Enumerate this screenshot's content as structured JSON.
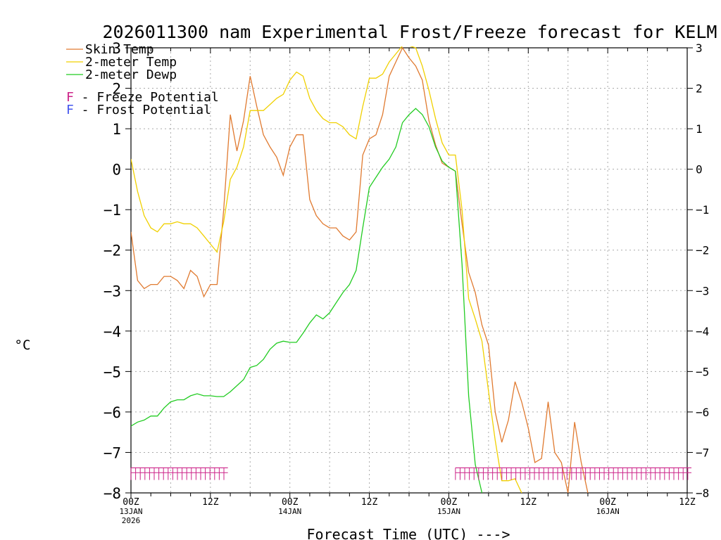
{
  "chart_data": {
    "type": "line",
    "title": "2026011300 nam Experimental Frost/Freeze forecast for KELM",
    "ylabel": "°C",
    "xlabel": "Forecast Time (UTC) --->",
    "ylim": [
      -8,
      3
    ],
    "xlim": [
      0,
      84
    ],
    "grid": true,
    "y_ticks": [
      -8,
      -7,
      -6,
      -5,
      -4,
      -3,
      -2,
      -1,
      0,
      1,
      2,
      3
    ],
    "x_ticks": [
      {
        "hour": 0,
        "label": "00Z",
        "sub1": "13JAN",
        "sub2": "2026"
      },
      {
        "hour": 12,
        "label": "12Z",
        "sub1": "",
        "sub2": ""
      },
      {
        "hour": 24,
        "label": "00Z",
        "sub1": "14JAN",
        "sub2": ""
      },
      {
        "hour": 36,
        "label": "12Z",
        "sub1": "",
        "sub2": ""
      },
      {
        "hour": 48,
        "label": "00Z",
        "sub1": "15JAN",
        "sub2": ""
      },
      {
        "hour": 60,
        "label": "12Z",
        "sub1": "",
        "sub2": ""
      },
      {
        "hour": 72,
        "label": "00Z",
        "sub1": "16JAN",
        "sub2": ""
      },
      {
        "hour": 84,
        "label": "12Z",
        "sub1": "",
        "sub2": ""
      }
    ],
    "legend": [
      {
        "name": "Skin Temp",
        "color": "#e07a30"
      },
      {
        "name": "2-meter Temp",
        "color": "#f0d000"
      },
      {
        "name": "2-meter Dewp",
        "color": "#22cc22"
      }
    ],
    "potential_legend": [
      {
        "symbol": "F",
        "text": " - Freeze Potential",
        "color": "#cc2288"
      },
      {
        "symbol": "F",
        "text": " - Frost Potential",
        "color": "#4455ee"
      }
    ],
    "series": [
      {
        "name": "Skin Temp",
        "color": "#e07a30",
        "points": [
          [
            0,
            -1.55
          ],
          [
            1,
            -2.75
          ],
          [
            2,
            -2.95
          ],
          [
            3,
            -2.85
          ],
          [
            4,
            -2.85
          ],
          [
            5,
            -2.65
          ],
          [
            6,
            -2.65
          ],
          [
            7,
            -2.75
          ],
          [
            8,
            -2.95
          ],
          [
            9,
            -2.5
          ],
          [
            10,
            -2.65
          ],
          [
            11,
            -3.15
          ],
          [
            12,
            -2.85
          ],
          [
            13,
            -2.85
          ],
          [
            14,
            -1.0
          ],
          [
            15,
            1.35
          ],
          [
            16,
            0.45
          ],
          [
            17,
            1.2
          ],
          [
            18,
            2.3
          ],
          [
            19,
            1.55
          ],
          [
            20,
            0.85
          ],
          [
            21,
            0.55
          ],
          [
            22,
            0.3
          ],
          [
            23,
            -0.15
          ],
          [
            24,
            0.55
          ],
          [
            25,
            0.85
          ],
          [
            26,
            0.85
          ],
          [
            27,
            -0.75
          ],
          [
            28,
            -1.15
          ],
          [
            29,
            -1.35
          ],
          [
            30,
            -1.45
          ],
          [
            31,
            -1.45
          ],
          [
            32,
            -1.65
          ],
          [
            33,
            -1.75
          ],
          [
            34,
            -1.55
          ],
          [
            35,
            0.35
          ],
          [
            36,
            0.75
          ],
          [
            37,
            0.85
          ],
          [
            38,
            1.35
          ],
          [
            39,
            2.3
          ],
          [
            40,
            2.65
          ],
          [
            41,
            3.0
          ],
          [
            42,
            2.75
          ],
          [
            43,
            2.55
          ],
          [
            44,
            2.2
          ],
          [
            45,
            1.2
          ],
          [
            46,
            0.6
          ],
          [
            47,
            0.15
          ],
          [
            48,
            0.05
          ],
          [
            49,
            -0.05
          ],
          [
            50,
            -1.35
          ],
          [
            51,
            -2.55
          ],
          [
            52,
            -3.05
          ],
          [
            53,
            -3.85
          ],
          [
            54,
            -4.35
          ],
          [
            55,
            -6.0
          ],
          [
            56,
            -6.75
          ],
          [
            57,
            -6.2
          ],
          [
            58,
            -5.25
          ],
          [
            59,
            -5.75
          ],
          [
            60,
            -6.4
          ],
          [
            61,
            -7.25
          ],
          [
            62,
            -7.15
          ],
          [
            63,
            -5.75
          ],
          [
            64,
            -7.0
          ],
          [
            65,
            -7.25
          ],
          [
            66,
            -8.0
          ],
          [
            67,
            -6.25
          ],
          [
            68,
            -7.25
          ],
          [
            69,
            -8.0
          ]
        ]
      },
      {
        "name": "2-meter Temp",
        "color": "#f0d000",
        "points": [
          [
            0,
            0.25
          ],
          [
            1,
            -0.55
          ],
          [
            2,
            -1.15
          ],
          [
            3,
            -1.45
          ],
          [
            4,
            -1.55
          ],
          [
            5,
            -1.35
          ],
          [
            6,
            -1.35
          ],
          [
            7,
            -1.3
          ],
          [
            8,
            -1.35
          ],
          [
            9,
            -1.35
          ],
          [
            10,
            -1.45
          ],
          [
            11,
            -1.65
          ],
          [
            12,
            -1.85
          ],
          [
            13,
            -2.05
          ],
          [
            14,
            -1.3
          ],
          [
            15,
            -0.25
          ],
          [
            16,
            0.05
          ],
          [
            17,
            0.55
          ],
          [
            18,
            1.45
          ],
          [
            19,
            1.45
          ],
          [
            20,
            1.45
          ],
          [
            21,
            1.6
          ],
          [
            22,
            1.75
          ],
          [
            23,
            1.85
          ],
          [
            24,
            2.2
          ],
          [
            25,
            2.4
          ],
          [
            26,
            2.3
          ],
          [
            27,
            1.75
          ],
          [
            28,
            1.45
          ],
          [
            29,
            1.25
          ],
          [
            30,
            1.15
          ],
          [
            31,
            1.15
          ],
          [
            32,
            1.05
          ],
          [
            33,
            0.85
          ],
          [
            34,
            0.75
          ],
          [
            35,
            1.55
          ],
          [
            36,
            2.25
          ],
          [
            37,
            2.25
          ],
          [
            38,
            2.35
          ],
          [
            39,
            2.65
          ],
          [
            40,
            2.85
          ],
          [
            41,
            3.05
          ],
          [
            42,
            3.05
          ],
          [
            43,
            3.0
          ],
          [
            44,
            2.55
          ],
          [
            45,
            1.95
          ],
          [
            46,
            1.25
          ],
          [
            47,
            0.65
          ],
          [
            48,
            0.35
          ],
          [
            49,
            0.35
          ],
          [
            50,
            -1.0
          ],
          [
            51,
            -3.2
          ],
          [
            52,
            -3.7
          ],
          [
            53,
            -4.25
          ],
          [
            54,
            -5.5
          ],
          [
            55,
            -6.7
          ],
          [
            56,
            -7.7
          ],
          [
            57,
            -7.7
          ],
          [
            58,
            -7.65
          ],
          [
            59,
            -8.0
          ]
        ]
      },
      {
        "name": "2-meter Dewp",
        "color": "#22cc22",
        "points": [
          [
            0,
            -6.35
          ],
          [
            1,
            -6.25
          ],
          [
            2,
            -6.2
          ],
          [
            3,
            -6.1
          ],
          [
            4,
            -6.1
          ],
          [
            5,
            -5.9
          ],
          [
            6,
            -5.75
          ],
          [
            7,
            -5.7
          ],
          [
            8,
            -5.7
          ],
          [
            9,
            -5.6
          ],
          [
            10,
            -5.55
          ],
          [
            11,
            -5.6
          ],
          [
            12,
            -5.6
          ],
          [
            13,
            -5.62
          ],
          [
            14,
            -5.62
          ],
          [
            15,
            -5.5
          ],
          [
            16,
            -5.35
          ],
          [
            17,
            -5.2
          ],
          [
            18,
            -4.9
          ],
          [
            19,
            -4.85
          ],
          [
            20,
            -4.7
          ],
          [
            21,
            -4.45
          ],
          [
            22,
            -4.3
          ],
          [
            23,
            -4.25
          ],
          [
            24,
            -4.28
          ],
          [
            25,
            -4.28
          ],
          [
            26,
            -4.05
          ],
          [
            27,
            -3.8
          ],
          [
            28,
            -3.6
          ],
          [
            29,
            -3.7
          ],
          [
            30,
            -3.55
          ],
          [
            31,
            -3.3
          ],
          [
            32,
            -3.05
          ],
          [
            33,
            -2.85
          ],
          [
            34,
            -2.5
          ],
          [
            35,
            -1.45
          ],
          [
            36,
            -0.45
          ],
          [
            37,
            -0.2
          ],
          [
            38,
            0.05
          ],
          [
            39,
            0.25
          ],
          [
            40,
            0.55
          ],
          [
            41,
            1.15
          ],
          [
            42,
            1.35
          ],
          [
            43,
            1.5
          ],
          [
            44,
            1.35
          ],
          [
            45,
            1.05
          ],
          [
            46,
            0.55
          ],
          [
            47,
            0.2
          ],
          [
            48,
            0.05
          ],
          [
            49,
            -0.05
          ],
          [
            50,
            -2.35
          ],
          [
            51,
            -5.6
          ],
          [
            52,
            -7.3
          ],
          [
            53,
            -8.0
          ]
        ]
      }
    ],
    "freeze_potential": {
      "symbol": "F",
      "color": "#cc2288",
      "ranges": [
        [
          0,
          14
        ],
        [
          49,
          84
        ]
      ]
    }
  }
}
